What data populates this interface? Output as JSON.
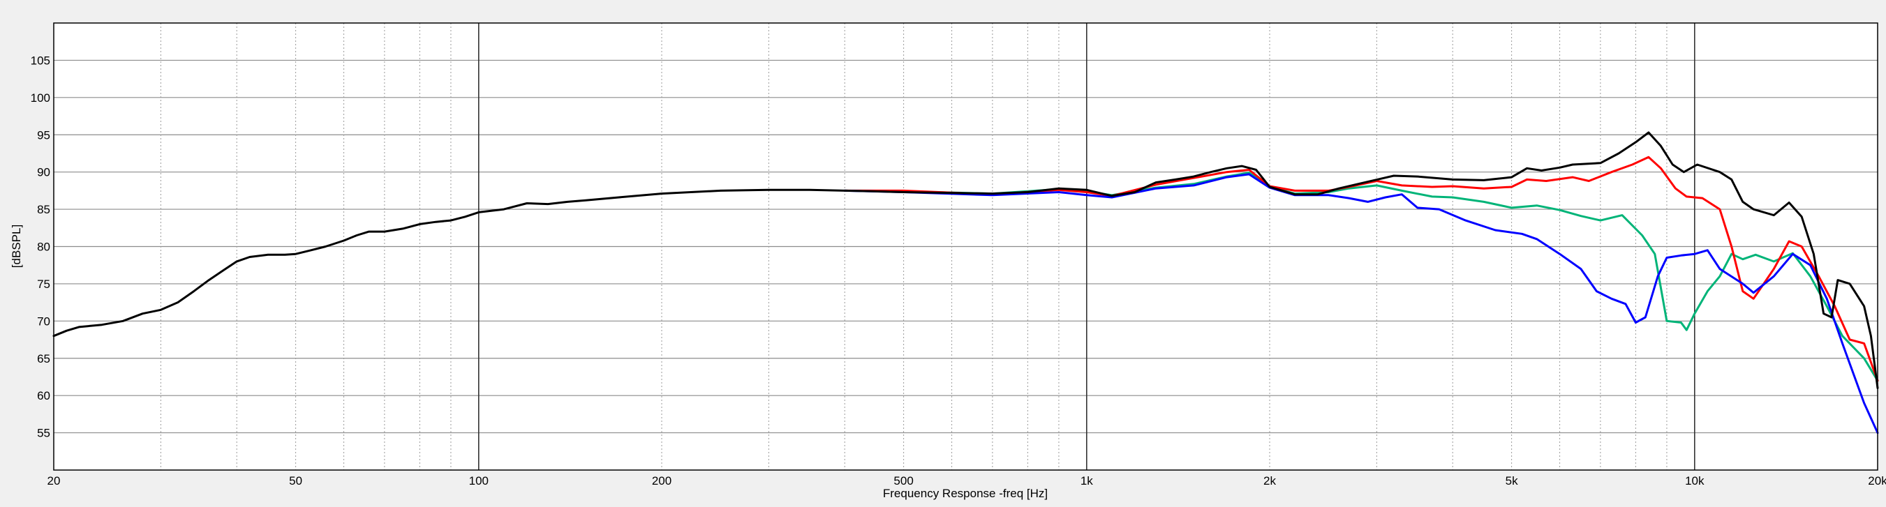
{
  "chart_data": {
    "type": "line",
    "title": "",
    "xlabel": "Frequency Response -freq [Hz]",
    "ylabel": "[dBSPL]",
    "x_scale": "log",
    "xlim": [
      20,
      20000
    ],
    "ylim": [
      50,
      110
    ],
    "x_ticks": [
      {
        "value": 20,
        "label": "20"
      },
      {
        "value": 50,
        "label": "50"
      },
      {
        "value": 100,
        "label": "100"
      },
      {
        "value": 200,
        "label": "200"
      },
      {
        "value": 500,
        "label": "500"
      },
      {
        "value": 1000,
        "label": "1k"
      },
      {
        "value": 2000,
        "label": "2k"
      },
      {
        "value": 5000,
        "label": "5k"
      },
      {
        "value": 10000,
        "label": "10k"
      },
      {
        "value": 20000,
        "label": "20k"
      }
    ],
    "y_ticks": [
      55,
      60,
      65,
      70,
      75,
      80,
      85,
      90,
      95,
      100,
      105
    ],
    "grid": true,
    "legend": "none",
    "series": [
      {
        "color": "#00b478",
        "points": [
          [
            400,
            87.5
          ],
          [
            500,
            87.4
          ],
          [
            700,
            87.1
          ],
          [
            900,
            87.7
          ],
          [
            1000,
            87.4
          ],
          [
            1100,
            86.9
          ],
          [
            1300,
            87.9
          ],
          [
            1500,
            88.4
          ],
          [
            1700,
            89.4
          ],
          [
            1850,
            89.9
          ],
          [
            2000,
            88.0
          ],
          [
            2200,
            87.1
          ],
          [
            2500,
            87.3
          ],
          [
            2700,
            87.8
          ],
          [
            3000,
            88.2
          ],
          [
            3300,
            87.5
          ],
          [
            3700,
            86.7
          ],
          [
            4000,
            86.6
          ],
          [
            4500,
            86.0
          ],
          [
            5000,
            85.2
          ],
          [
            5500,
            85.5
          ],
          [
            6000,
            84.9
          ],
          [
            6500,
            84.1
          ],
          [
            7000,
            83.5
          ],
          [
            7600,
            84.2
          ],
          [
            8200,
            81.5
          ],
          [
            8600,
            79.0
          ],
          [
            9000,
            70.0
          ],
          [
            9500,
            69.8
          ],
          [
            9700,
            68.8
          ],
          [
            10000,
            71.0
          ],
          [
            10500,
            74.0
          ],
          [
            11000,
            76.0
          ],
          [
            11500,
            79.0
          ],
          [
            12000,
            78.3
          ],
          [
            12600,
            78.9
          ],
          [
            13500,
            78.0
          ],
          [
            14500,
            79.1
          ],
          [
            15500,
            76.0
          ],
          [
            16500,
            72.0
          ],
          [
            17500,
            68.0
          ],
          [
            19000,
            65.0
          ],
          [
            20000,
            62.0
          ]
        ]
      },
      {
        "color": "#ff0000",
        "points": [
          [
            400,
            87.5
          ],
          [
            500,
            87.5
          ],
          [
            700,
            87.0
          ],
          [
            900,
            87.6
          ],
          [
            1000,
            87.3
          ],
          [
            1100,
            86.8
          ],
          [
            1300,
            88.3
          ],
          [
            1500,
            89.2
          ],
          [
            1700,
            90.0
          ],
          [
            1850,
            90.3
          ],
          [
            2000,
            88.1
          ],
          [
            2200,
            87.5
          ],
          [
            2500,
            87.5
          ],
          [
            2700,
            88.0
          ],
          [
            3000,
            88.8
          ],
          [
            3300,
            88.2
          ],
          [
            3700,
            88.0
          ],
          [
            4000,
            88.1
          ],
          [
            4500,
            87.8
          ],
          [
            5000,
            88.0
          ],
          [
            5300,
            89.0
          ],
          [
            5700,
            88.8
          ],
          [
            6300,
            89.3
          ],
          [
            6700,
            88.8
          ],
          [
            7300,
            90.0
          ],
          [
            7900,
            91.0
          ],
          [
            8400,
            92.0
          ],
          [
            8800,
            90.5
          ],
          [
            9300,
            87.8
          ],
          [
            9700,
            86.7
          ],
          [
            10300,
            86.5
          ],
          [
            11000,
            85.0
          ],
          [
            11500,
            80.0
          ],
          [
            12000,
            74.0
          ],
          [
            12500,
            73.0
          ],
          [
            13500,
            77.0
          ],
          [
            14300,
            80.7
          ],
          [
            15000,
            80.0
          ],
          [
            16000,
            76.0
          ],
          [
            17000,
            72.0
          ],
          [
            18000,
            67.5
          ],
          [
            19000,
            67.0
          ],
          [
            20000,
            62.0
          ]
        ]
      },
      {
        "color": "#0000ff",
        "points": [
          [
            400,
            87.5
          ],
          [
            500,
            87.3
          ],
          [
            700,
            86.9
          ],
          [
            900,
            87.3
          ],
          [
            1000,
            86.9
          ],
          [
            1100,
            86.6
          ],
          [
            1300,
            87.8
          ],
          [
            1500,
            88.2
          ],
          [
            1700,
            89.3
          ],
          [
            1850,
            89.7
          ],
          [
            2000,
            87.9
          ],
          [
            2200,
            86.9
          ],
          [
            2500,
            86.9
          ],
          [
            2700,
            86.5
          ],
          [
            2900,
            86.0
          ],
          [
            3100,
            86.6
          ],
          [
            3300,
            87.0
          ],
          [
            3500,
            85.2
          ],
          [
            3800,
            85.0
          ],
          [
            4200,
            83.5
          ],
          [
            4700,
            82.2
          ],
          [
            5200,
            81.7
          ],
          [
            5500,
            81.0
          ],
          [
            6000,
            79.0
          ],
          [
            6500,
            77.0
          ],
          [
            6900,
            74.0
          ],
          [
            7300,
            73.0
          ],
          [
            7700,
            72.3
          ],
          [
            8000,
            69.8
          ],
          [
            8300,
            70.5
          ],
          [
            8700,
            76.0
          ],
          [
            9000,
            78.5
          ],
          [
            9500,
            78.8
          ],
          [
            10000,
            79.0
          ],
          [
            10500,
            79.5
          ],
          [
            11000,
            77.0
          ],
          [
            12000,
            75.0
          ],
          [
            12500,
            73.8
          ],
          [
            13500,
            76.0
          ],
          [
            14500,
            79.0
          ],
          [
            15500,
            77.5
          ],
          [
            16500,
            73.0
          ],
          [
            17500,
            67.0
          ],
          [
            19000,
            59.0
          ],
          [
            20000,
            55.0
          ]
        ]
      },
      {
        "color": "#000000",
        "points": [
          [
            20,
            68.0
          ],
          [
            21,
            68.7
          ],
          [
            22,
            69.2
          ],
          [
            24,
            69.5
          ],
          [
            26,
            70.0
          ],
          [
            28,
            71.0
          ],
          [
            30,
            71.5
          ],
          [
            32,
            72.5
          ],
          [
            34,
            74.0
          ],
          [
            36,
            75.5
          ],
          [
            38,
            76.8
          ],
          [
            40,
            78.0
          ],
          [
            42,
            78.6
          ],
          [
            45,
            78.9
          ],
          [
            48,
            78.9
          ],
          [
            50,
            79.0
          ],
          [
            53,
            79.5
          ],
          [
            56,
            80.0
          ],
          [
            60,
            80.8
          ],
          [
            63,
            81.5
          ],
          [
            66,
            82.0
          ],
          [
            70,
            82.0
          ],
          [
            75,
            82.4
          ],
          [
            80,
            83.0
          ],
          [
            85,
            83.3
          ],
          [
            90,
            83.5
          ],
          [
            95,
            84.0
          ],
          [
            100,
            84.6
          ],
          [
            110,
            85.0
          ],
          [
            120,
            85.8
          ],
          [
            130,
            85.7
          ],
          [
            140,
            86.0
          ],
          [
            150,
            86.2
          ],
          [
            170,
            86.6
          ],
          [
            200,
            87.1
          ],
          [
            250,
            87.5
          ],
          [
            300,
            87.6
          ],
          [
            350,
            87.6
          ],
          [
            400,
            87.5
          ],
          [
            450,
            87.4
          ],
          [
            500,
            87.3
          ],
          [
            600,
            87.2
          ],
          [
            700,
            87.1
          ],
          [
            800,
            87.3
          ],
          [
            900,
            87.8
          ],
          [
            1000,
            87.6
          ],
          [
            1100,
            86.8
          ],
          [
            1200,
            87.3
          ],
          [
            1300,
            88.6
          ],
          [
            1400,
            89.0
          ],
          [
            1500,
            89.4
          ],
          [
            1600,
            90.0
          ],
          [
            1700,
            90.5
          ],
          [
            1800,
            90.8
          ],
          [
            1900,
            90.3
          ],
          [
            2000,
            88.0
          ],
          [
            2200,
            87.0
          ],
          [
            2400,
            87.0
          ],
          [
            2600,
            87.8
          ],
          [
            2900,
            88.7
          ],
          [
            3200,
            89.5
          ],
          [
            3500,
            89.4
          ],
          [
            4000,
            89.0
          ],
          [
            4500,
            88.9
          ],
          [
            5000,
            89.3
          ],
          [
            5300,
            90.5
          ],
          [
            5600,
            90.2
          ],
          [
            6000,
            90.6
          ],
          [
            6300,
            91.0
          ],
          [
            7000,
            91.2
          ],
          [
            7500,
            92.5
          ],
          [
            8000,
            94.0
          ],
          [
            8400,
            95.3
          ],
          [
            8800,
            93.5
          ],
          [
            9200,
            91.0
          ],
          [
            9600,
            90.0
          ],
          [
            10100,
            91.0
          ],
          [
            11000,
            90.0
          ],
          [
            11500,
            89.0
          ],
          [
            12000,
            86.0
          ],
          [
            12500,
            85.0
          ],
          [
            13500,
            84.2
          ],
          [
            14300,
            85.9
          ],
          [
            15000,
            84.0
          ],
          [
            15700,
            79.0
          ],
          [
            16300,
            71.0
          ],
          [
            16800,
            70.5
          ],
          [
            17200,
            75.5
          ],
          [
            18000,
            75.0
          ],
          [
            19000,
            72.0
          ],
          [
            19500,
            68.0
          ],
          [
            20000,
            61.0
          ]
        ]
      }
    ]
  }
}
